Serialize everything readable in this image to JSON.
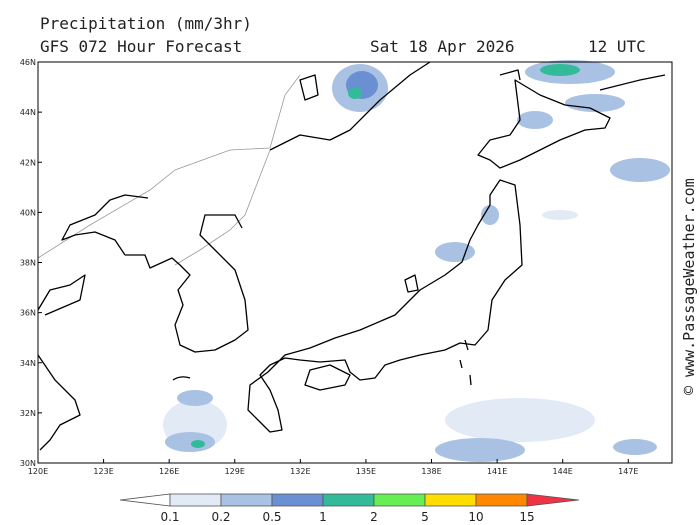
{
  "header": {
    "title": "Precipitation (mm/3hr)",
    "model": "GFS 072 Hour Forecast",
    "date": "Sat 18 Apr 2026",
    "time": "12 UTC"
  },
  "map": {
    "lat_ticks": [
      "46N",
      "44N",
      "42N",
      "40N",
      "38N",
      "36N",
      "34N",
      "32N",
      "30N"
    ],
    "lon_ticks": [
      "120E",
      "123E",
      "126E",
      "129E",
      "132E",
      "135E",
      "138E",
      "141E",
      "144E",
      "147E"
    ]
  },
  "legend": {
    "labels": [
      "0.1",
      "0.2",
      "0.5",
      "1",
      "2",
      "5",
      "10",
      "15"
    ],
    "colors": [
      "#ffffff",
      "#e2eaf6",
      "#a9c1e3",
      "#6a8fd3",
      "#33bb99",
      "#66ee55",
      "#ffdd00",
      "#ff8800",
      "#ee3344"
    ]
  },
  "watermark": "© www.PassageWeather.com"
}
